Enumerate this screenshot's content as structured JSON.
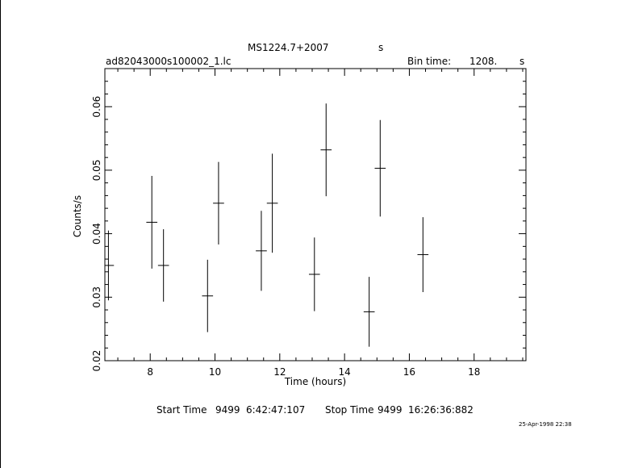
{
  "chart_data": {
    "type": "scatter",
    "title": "MS1224.7+2007",
    "title_suffix": "s",
    "filename": "ad82043000s100002_1.lc",
    "bin_time_label": "Bin time:",
    "bin_time_value": "1208.",
    "bin_time_unit": "s",
    "xlabel": "Time (hours)",
    "ylabel": "Counts/s",
    "xlim": [
      6.6,
      19.6
    ],
    "ylim": [
      0.02,
      0.066
    ],
    "x_ticks": [
      8,
      10,
      12,
      14,
      16,
      18
    ],
    "y_ticks": [
      0.02,
      0.03,
      0.04,
      0.05,
      0.06
    ],
    "x_tick_labels": [
      "8",
      "10",
      "12",
      "14",
      "16",
      "18"
    ],
    "y_tick_labels": [
      "0.02",
      "0.03",
      "0.04",
      "0.05",
      "0.06"
    ],
    "grid": false,
    "series": [
      {
        "x": [
          6.71,
          8.05,
          8.41,
          9.77,
          10.11,
          11.43,
          11.77,
          13.07,
          13.43,
          14.76,
          15.1,
          16.42
        ],
        "y": [
          0.035,
          0.0418,
          0.035,
          0.0302,
          0.0448,
          0.0373,
          0.0448,
          0.0336,
          0.0532,
          0.0277,
          0.0503,
          0.0367
        ],
        "y_err": [
          0.0055,
          0.0073,
          0.0057,
          0.0057,
          0.0065,
          0.0063,
          0.0078,
          0.0058,
          0.0073,
          0.0055,
          0.0076,
          0.0059
        ],
        "x_err": [
          0.17,
          0.17,
          0.17,
          0.17,
          0.17,
          0.17,
          0.17,
          0.17,
          0.17,
          0.17,
          0.17,
          0.17
        ]
      }
    ]
  },
  "footer": {
    "start_label": "Start Time",
    "start_day": "9499",
    "start_time": "6:42:47:107",
    "stop_label": "Stop Time",
    "stop_day": "9499",
    "stop_time": "16:26:36:882",
    "timestamp": "25-Apr-1998 22:38"
  }
}
